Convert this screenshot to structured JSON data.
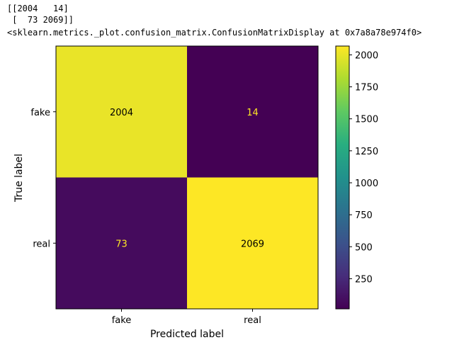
{
  "output": {
    "matrix_line1": "[[2004   14]",
    "matrix_line2": " [  73 2069]]",
    "repr": "<sklearn.metrics._plot.confusion_matrix.ConfusionMatrixDisplay at 0x7a8a78e974f0>"
  },
  "chart_data": {
    "type": "heatmap",
    "title": "",
    "xlabel": "Predicted label",
    "ylabel": "True label",
    "x_categories": [
      "fake",
      "real"
    ],
    "y_categories": [
      "fake",
      "real"
    ],
    "values": [
      [
        2004,
        14
      ],
      [
        73,
        2069
      ]
    ],
    "colormap": "viridis",
    "colorbar": {
      "range": [
        14,
        2069
      ],
      "ticks": [
        250,
        500,
        750,
        1000,
        1250,
        1500,
        1750,
        2000
      ]
    },
    "text_colors": {
      "light_cell": "#000000",
      "dark_cell": "#fde725"
    }
  }
}
